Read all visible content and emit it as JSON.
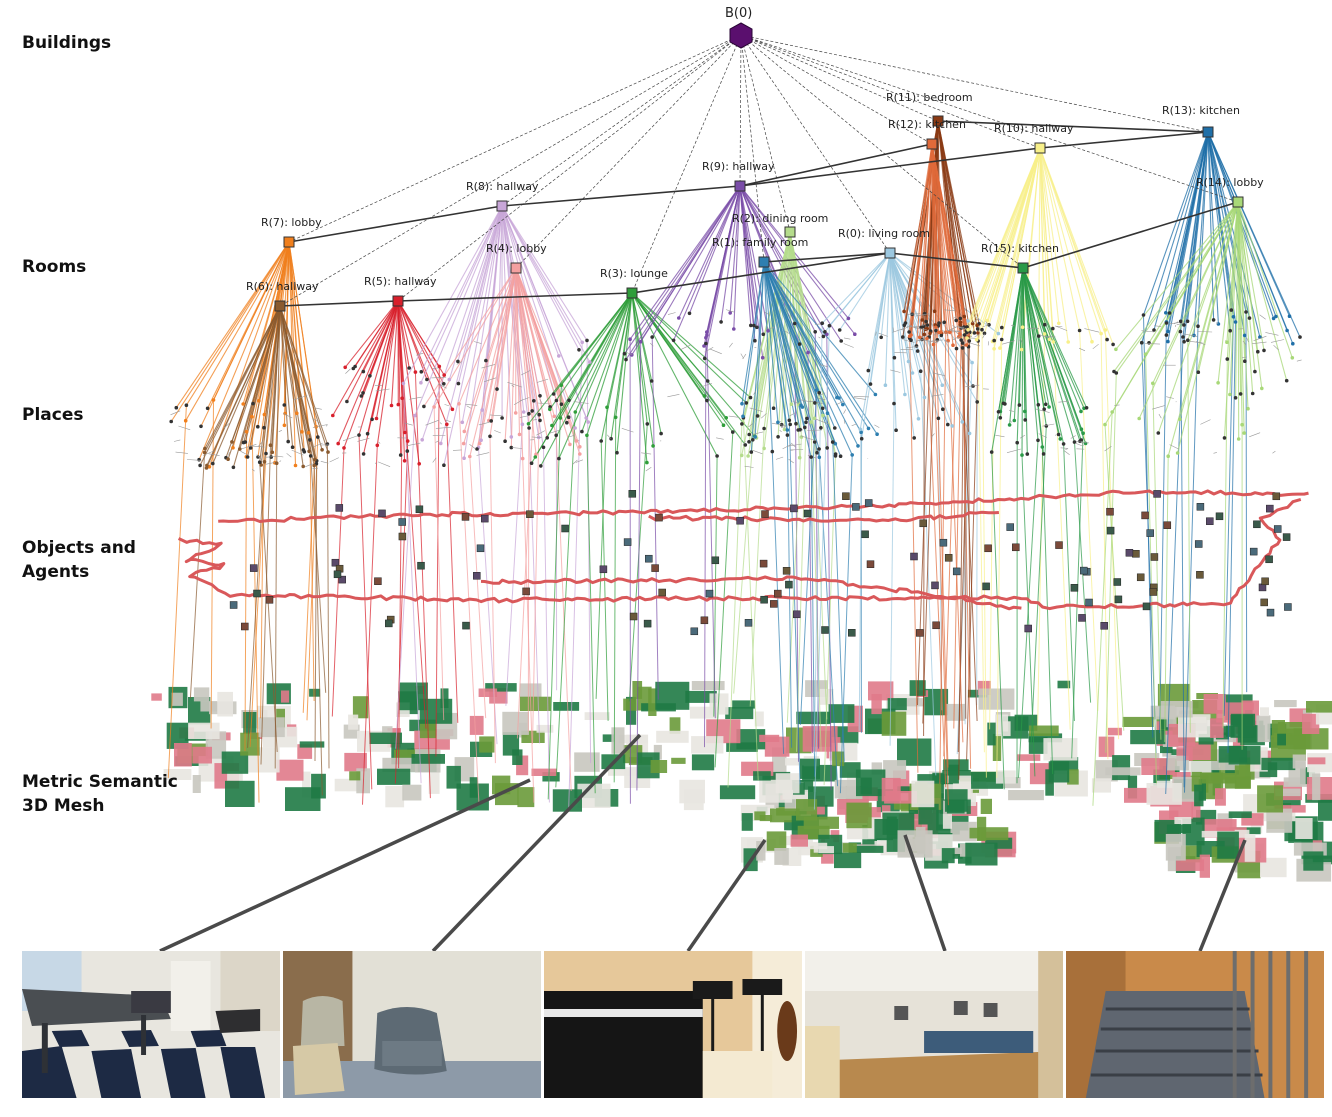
{
  "layers": {
    "buildings": "Buildings",
    "rooms": "Rooms",
    "places": "Places",
    "objects_line1": "Objects and",
    "objects_line2": "Agents",
    "mesh_line1": "Metric Semantic",
    "mesh_line2": "3D Mesh"
  },
  "building": {
    "id": "B(0)",
    "color": "#5a0f6e"
  },
  "rooms": [
    {
      "id": "R(7):",
      "label": "lobby",
      "color": "#f07f1d"
    },
    {
      "id": "R(6):",
      "label": "hallway",
      "color": "#8a5a2f"
    },
    {
      "id": "R(5):",
      "label": "hallway",
      "color": "#d8202c"
    },
    {
      "id": "R(8):",
      "label": "hallway",
      "color": "#c8a6d8"
    },
    {
      "id": "R(4):",
      "label": "lobby",
      "color": "#f4a0a0"
    },
    {
      "id": "R(3):",
      "label": "lounge",
      "color": "#2f9e3a"
    },
    {
      "id": "R(9):",
      "label": "hallway",
      "color": "#7a4da8"
    },
    {
      "id": "R(2):",
      "label": "dining  room",
      "color": "#b5dc8c"
    },
    {
      "id": "R(1):",
      "label": "family room",
      "color": "#2e7fb0"
    },
    {
      "id": "R(0):",
      "label": "living  room",
      "color": "#9cc8e0"
    },
    {
      "id": "R(11):",
      "label": "bedroom",
      "color": "#8a3a14"
    },
    {
      "id": "R(12):",
      "label": "kitchen",
      "color": "#e06a3a"
    },
    {
      "id": "R(10):",
      "label": "hallway",
      "color": "#f8f08a"
    },
    {
      "id": "R(15):",
      "label": "kitchen",
      "color": "#2a9a48"
    },
    {
      "id": "R(13):",
      "label": "kitchen",
      "color": "#1f6fa8"
    },
    {
      "id": "R(14):",
      "label": "lobby",
      "color": "#a8d878"
    }
  ],
  "colors": {
    "trajectory": "#d9585a",
    "mesh_green": "#1f7a45",
    "mesh_gray": "#c8c6bf",
    "mesh_pink": "#e07a8a",
    "connector": "#4a4a4a"
  },
  "photos": [
    {
      "name": "ping-pong-room",
      "desc": ""
    },
    {
      "name": "lounge-chairs",
      "desc": ""
    },
    {
      "name": "piano-room",
      "desc": ""
    },
    {
      "name": "hall",
      "desc": ""
    },
    {
      "name": "stairwell",
      "desc": ""
    }
  ]
}
